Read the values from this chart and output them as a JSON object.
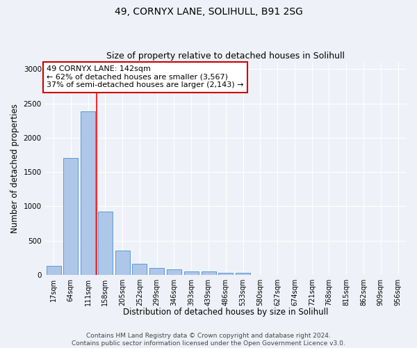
{
  "title": "49, CORNYX LANE, SOLIHULL, B91 2SG",
  "subtitle": "Size of property relative to detached houses in Solihull",
  "xlabel": "Distribution of detached houses by size in Solihull",
  "ylabel": "Number of detached properties",
  "categories": [
    "17sqm",
    "64sqm",
    "111sqm",
    "158sqm",
    "205sqm",
    "252sqm",
    "299sqm",
    "346sqm",
    "393sqm",
    "439sqm",
    "486sqm",
    "533sqm",
    "580sqm",
    "627sqm",
    "674sqm",
    "721sqm",
    "768sqm",
    "815sqm",
    "862sqm",
    "909sqm",
    "956sqm"
  ],
  "values": [
    130,
    1700,
    2380,
    920,
    350,
    160,
    100,
    80,
    50,
    50,
    30,
    30,
    0,
    0,
    0,
    0,
    0,
    0,
    0,
    0,
    0
  ],
  "bar_color": "#aec6e8",
  "bar_edge_color": "#5b9bd5",
  "red_line_x": 2.5,
  "annotation_line1": "49 CORNYX LANE: 142sqm",
  "annotation_line2": "← 62% of detached houses are smaller (3,567)",
  "annotation_line3": "37% of semi-detached houses are larger (2,143) →",
  "annotation_box_color": "#ffffff",
  "annotation_box_edge_color": "#cc0000",
  "ylim": [
    0,
    3100
  ],
  "yticks": [
    0,
    500,
    1000,
    1500,
    2000,
    2500,
    3000
  ],
  "footer_line1": "Contains HM Land Registry data © Crown copyright and database right 2024.",
  "footer_line2": "Contains public sector information licensed under the Open Government Licence v3.0.",
  "background_color": "#eef2f8",
  "grid_color": "#ffffff",
  "title_fontsize": 10,
  "subtitle_fontsize": 9,
  "axis_label_fontsize": 8.5,
  "tick_fontsize": 7,
  "annotation_fontsize": 8,
  "footer_fontsize": 6.5
}
